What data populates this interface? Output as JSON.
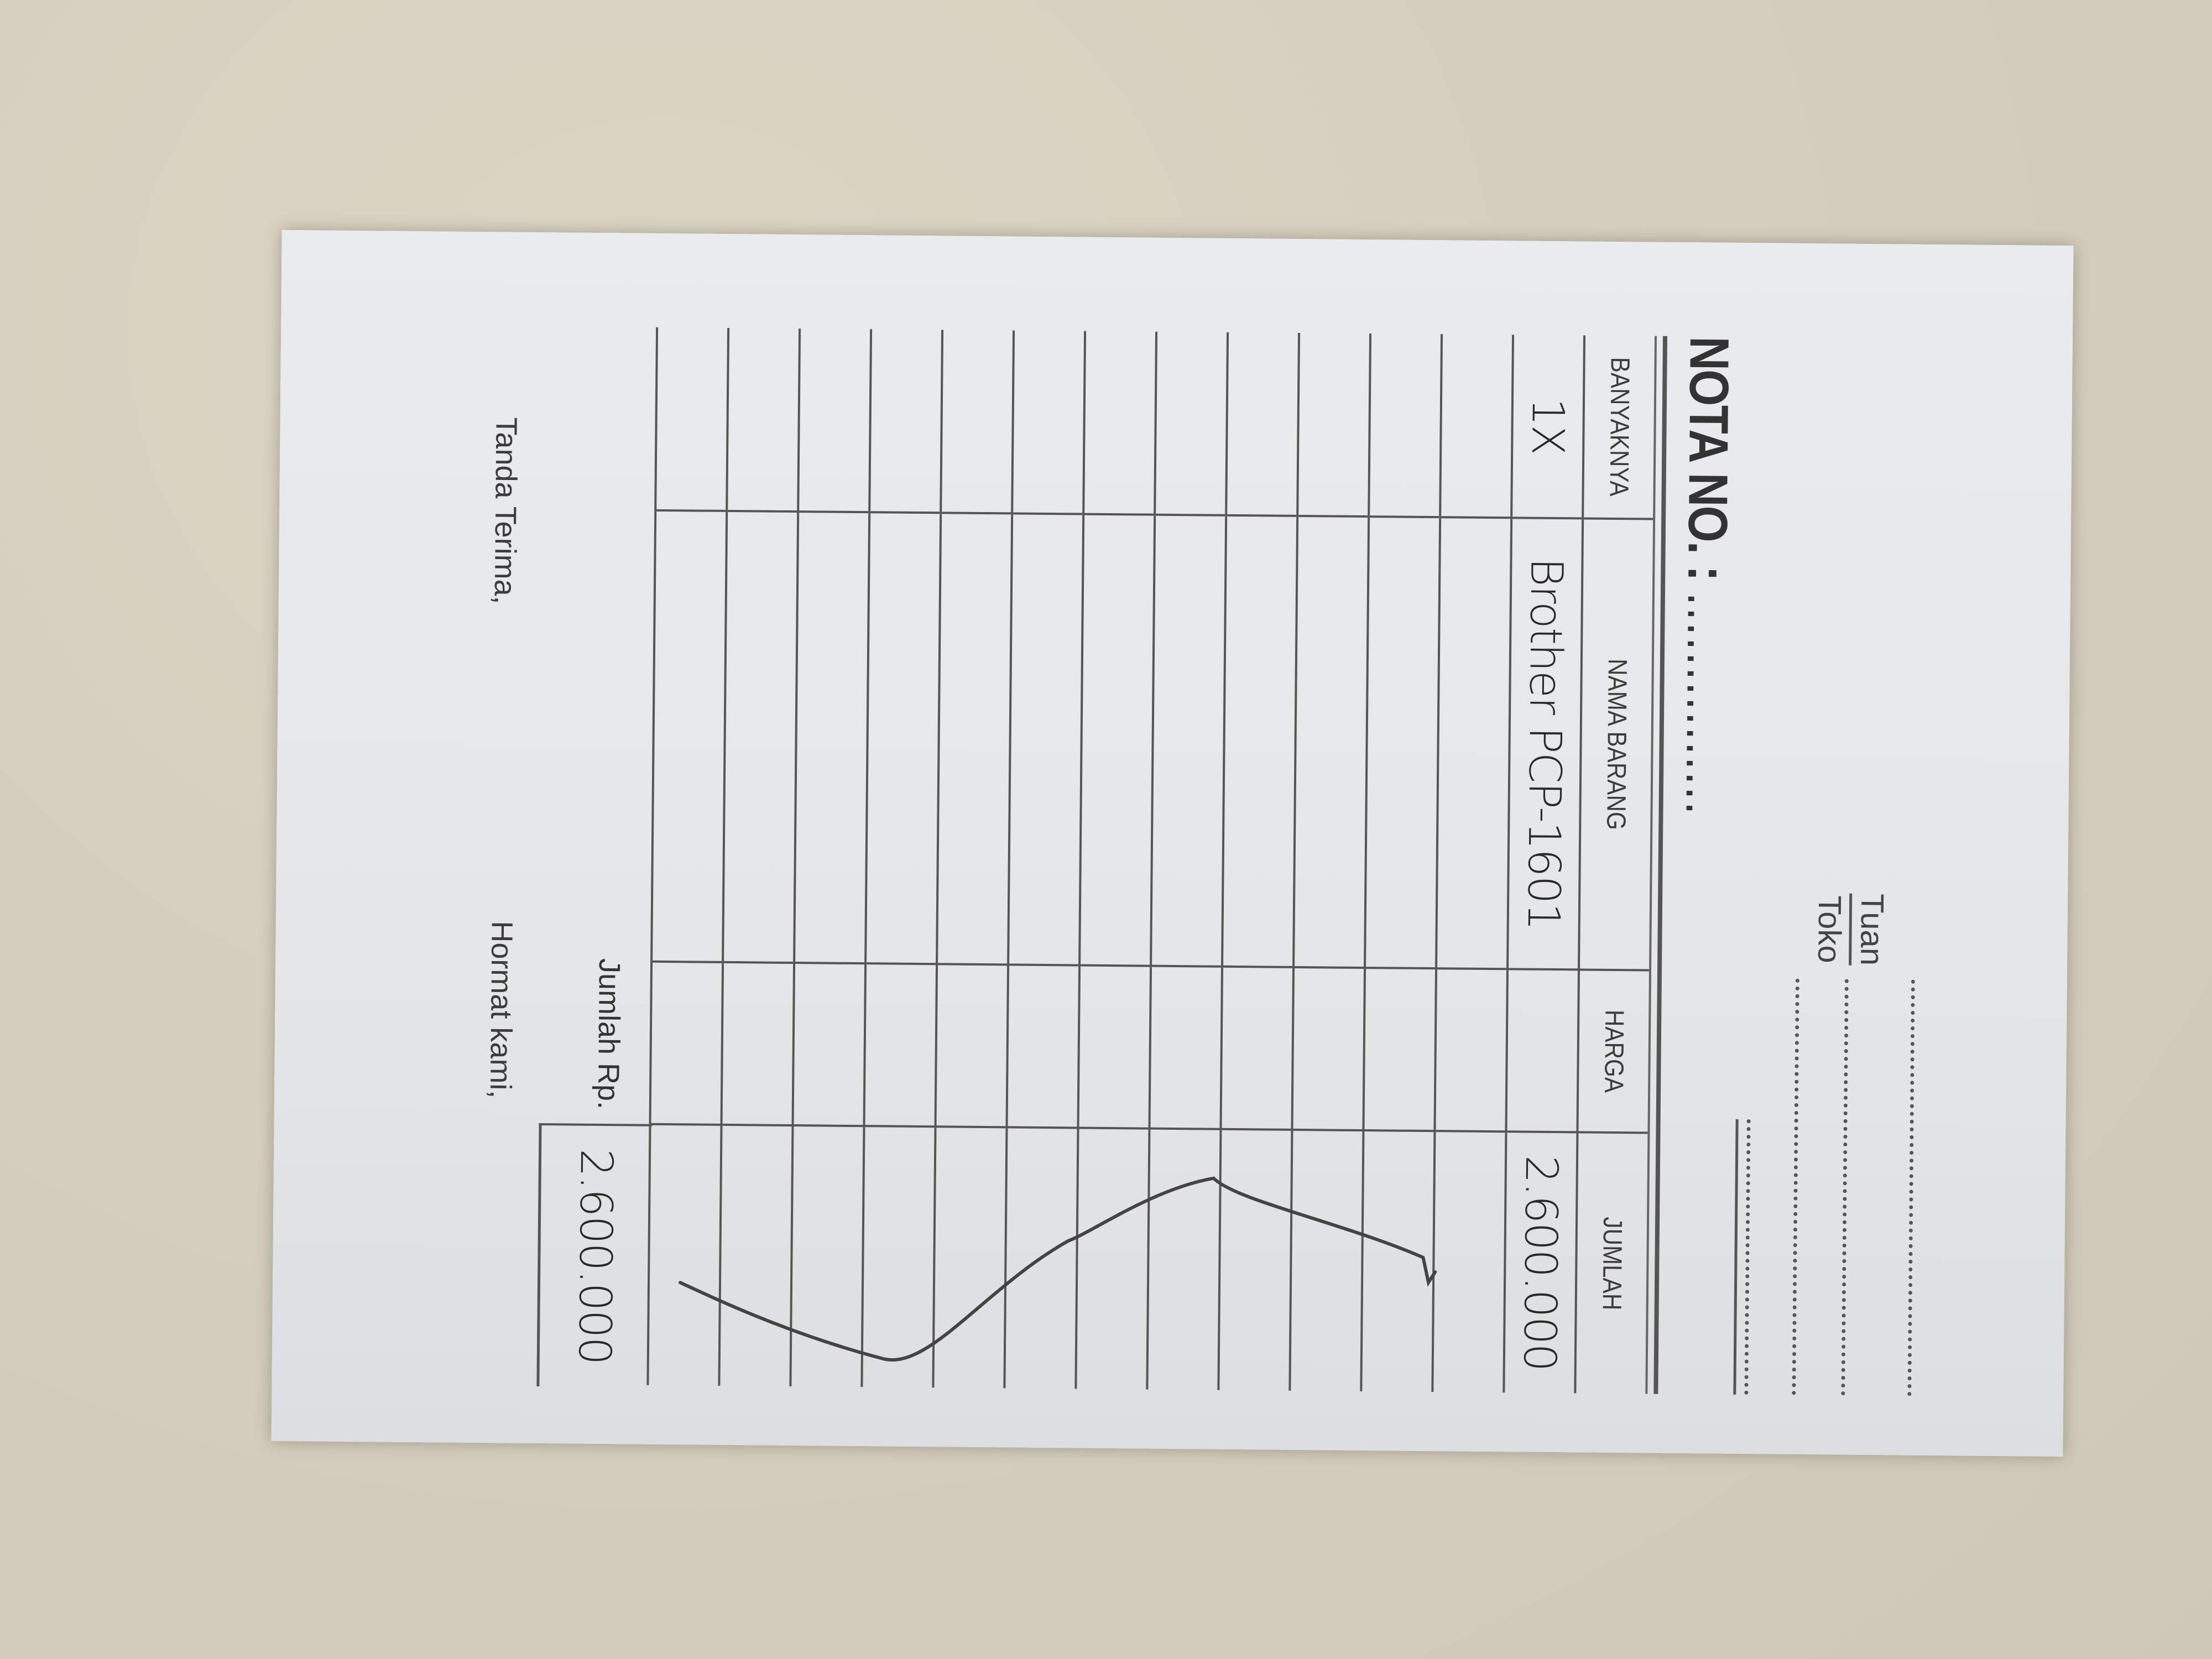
{
  "recipient": {
    "line1_label": "Tuan",
    "line2_label": "Toko"
  },
  "title": "NOTA NO. :",
  "title_dots": "...............",
  "table": {
    "headers": [
      "BANYAKNYA",
      "NAMA BARANG",
      "HARGA",
      "JUMLAH"
    ],
    "items": [
      {
        "qty": "1X",
        "name": "Brother PCP-1601",
        "price": "",
        "amount": "2.600.000"
      }
    ]
  },
  "total": {
    "label": "Jumlah Rp.",
    "value": "2.600.000"
  },
  "footer": {
    "received_label": "Tanda Terima,",
    "regards_label": "Hormat kami,"
  }
}
